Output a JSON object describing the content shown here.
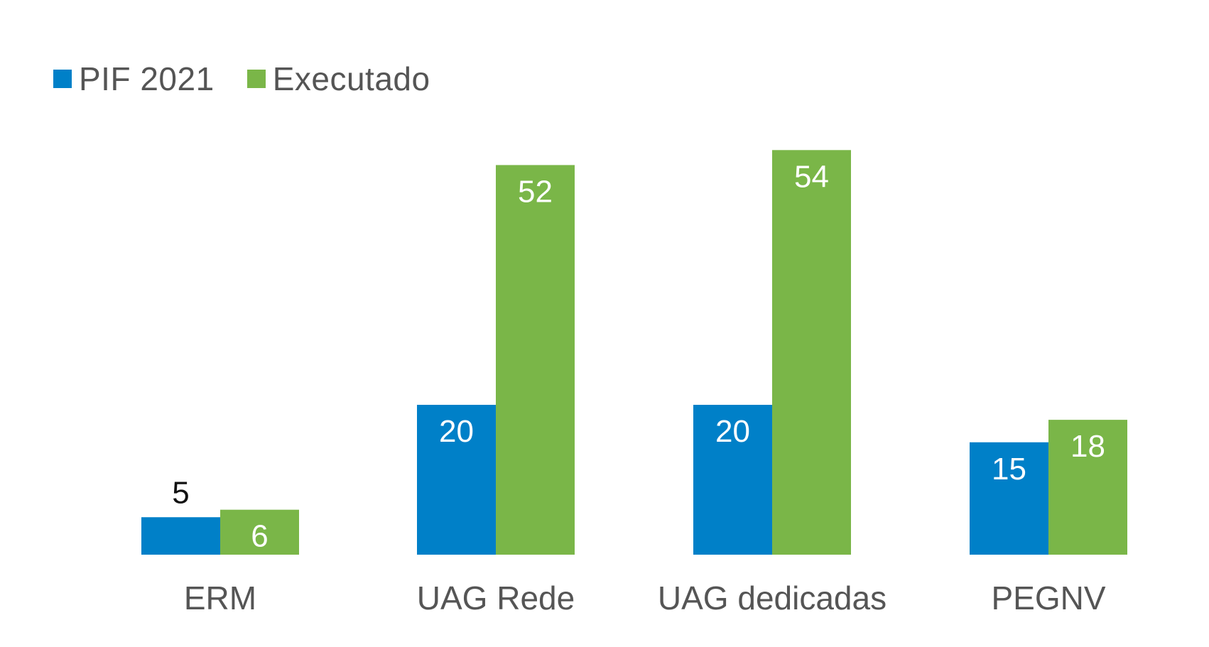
{
  "chart_data": {
    "type": "bar",
    "categories": [
      "ERM",
      "UAG Rede",
      "UAG dedicadas",
      "PEGNV"
    ],
    "series": [
      {
        "name": "PIF 2021",
        "values": [
          5,
          20,
          20,
          15
        ],
        "color": "#0080C8"
      },
      {
        "name": "Executado",
        "values": [
          6,
          52,
          54,
          18
        ],
        "color": "#7AB648"
      }
    ],
    "ylim": [
      0,
      54
    ],
    "grid": false,
    "legend_position": "top-left",
    "xlabel": "",
    "ylabel": "",
    "data_label_color_inside": "#ffffff",
    "data_label_color_outside": "#111111",
    "category_label_color": "#555555"
  }
}
